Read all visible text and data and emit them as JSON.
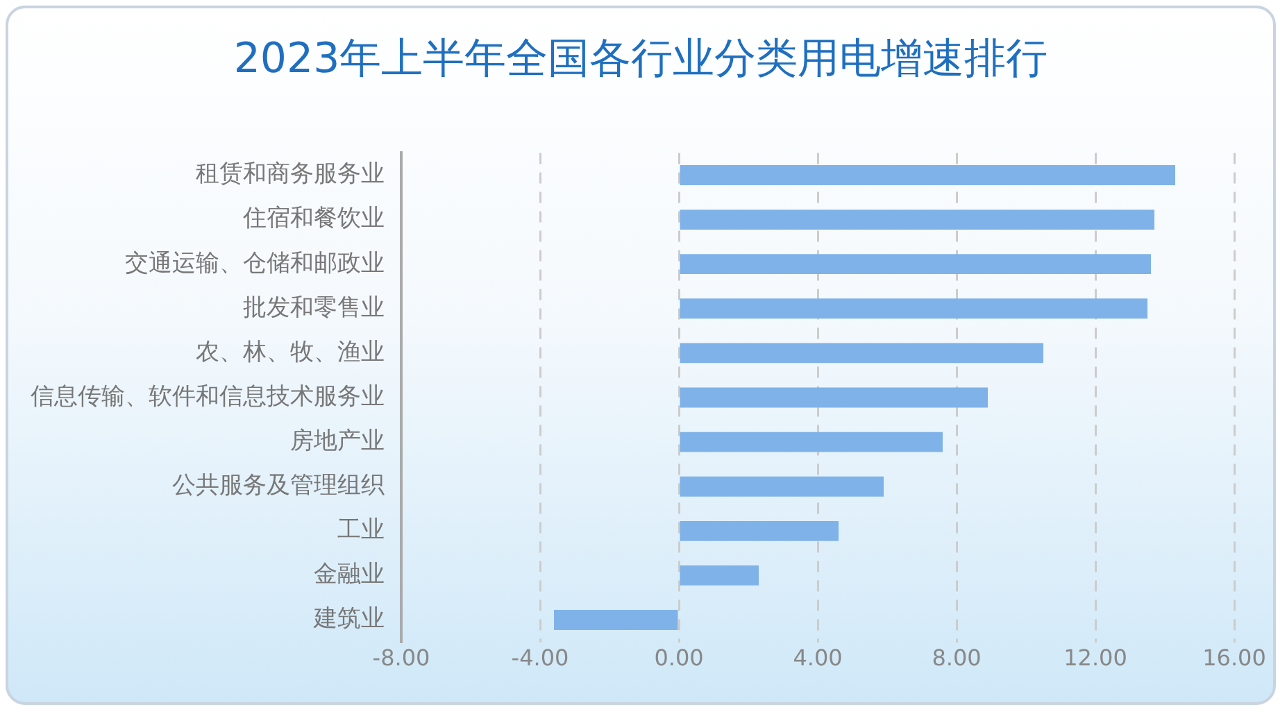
{
  "chart_data": {
    "type": "bar",
    "orientation": "horizontal",
    "title": "2023年上半年全国各行业分类用电增速排行",
    "categories": [
      "租赁和商务服务业",
      "住宿和餐饮业",
      "交通运输、仓储和邮政业",
      "批发和零售业",
      "农、林、牧、渔业",
      "信息传输、软件和信息技术服务业",
      "房地产业",
      "公共服务及管理组织",
      "工业",
      "金融业",
      "建筑业"
    ],
    "values": [
      14.3,
      13.7,
      13.6,
      13.5,
      10.5,
      8.9,
      7.6,
      5.9,
      4.6,
      2.3,
      -3.6
    ],
    "color": "#7fb2e8",
    "xlim": [
      -8,
      16
    ],
    "xticks": [
      {
        "value": -8,
        "label": "-8.00"
      },
      {
        "value": -4,
        "label": "-4.00"
      },
      {
        "value": 0,
        "label": "0.00"
      },
      {
        "value": 4,
        "label": "4.00"
      },
      {
        "value": 8,
        "label": "8.00"
      },
      {
        "value": 12,
        "label": "12.00"
      },
      {
        "value": 16,
        "label": "16.00"
      }
    ],
    "grid": "x",
    "legend": false
  }
}
